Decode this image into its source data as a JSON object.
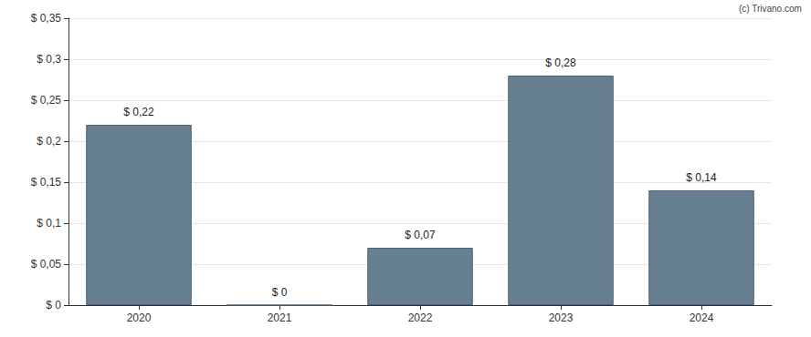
{
  "chart_data": {
    "type": "bar",
    "annotations": [
      "(c) Trivano.com"
    ],
    "categories": [
      "2020",
      "2021",
      "2022",
      "2023",
      "2024"
    ],
    "values": [
      0.22,
      0,
      0.07,
      0.28,
      0.14
    ],
    "value_labels": [
      "$ 0,22",
      "$ 0",
      "$ 0,07",
      "$ 0,28",
      "$ 0,14"
    ],
    "data_labels": true,
    "color": "#667f91",
    "ylim": [
      0,
      0.35
    ],
    "yticks": [
      {
        "value": 0,
        "label": "$ 0"
      },
      {
        "value": 0.05,
        "label": "$ 0,05"
      },
      {
        "value": 0.1,
        "label": "$ 0,1"
      },
      {
        "value": 0.15,
        "label": "$ 0,15"
      },
      {
        "value": 0.2,
        "label": "$ 0,2"
      },
      {
        "value": 0.25,
        "label": "$ 0,25"
      },
      {
        "value": 0.3,
        "label": "$ 0,3"
      },
      {
        "value": 0.35,
        "label": "$ 0,35"
      }
    ],
    "grid": true
  }
}
